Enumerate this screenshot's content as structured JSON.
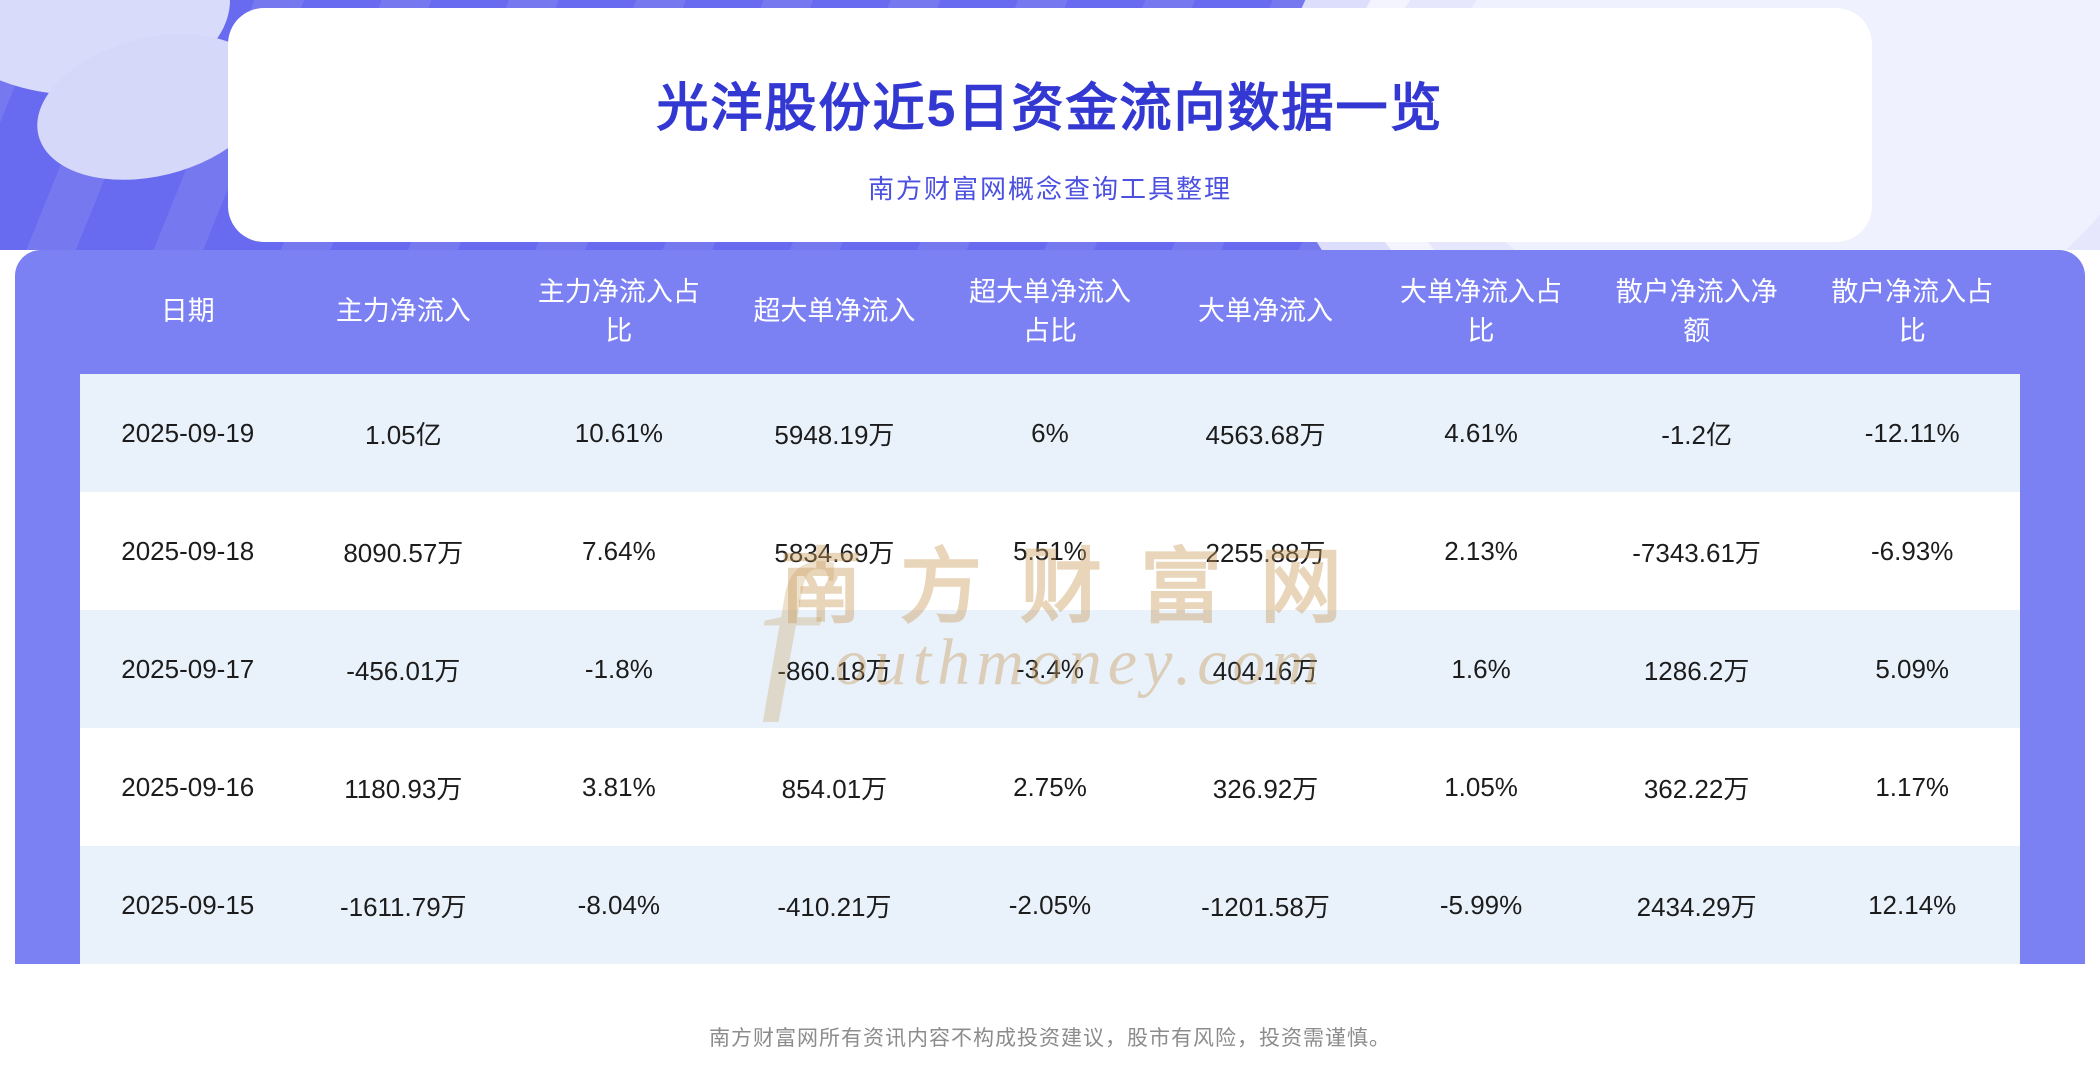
{
  "page": {
    "title": "光洋股份近5日资金流向数据一览",
    "subtitle": "南方财富网概念查询工具整理",
    "footer": "南方财富网所有资讯内容不构成投资建议，股市有风险，投资需谨慎。"
  },
  "watermark": {
    "cn": "南方财富网",
    "en": "outhmoney.com",
    "initial": "ƒ"
  },
  "colors": {
    "hero_background": "#686bef",
    "title_text": "#3438d2",
    "subtitle_text": "#4b50e0",
    "table_header_background": "#7b80f3",
    "table_header_text": "#ffffff",
    "row_alt_background": "#e9f2fb",
    "row_background": "#ffffff",
    "body_text": "#1c1c1c",
    "watermark": "#c89a5a",
    "footer_text": "#8c8c8c"
  },
  "chart_data": {
    "type": "table",
    "title": "光洋股份近5日资金流向数据一览",
    "columns": [
      "日期",
      "主力净流入",
      "主力净流入占比",
      "超大单净流入",
      "超大单净流入占比",
      "大单净流入",
      "大单净流入占比",
      "散户净流入净额",
      "散户净流入占比"
    ],
    "rows": [
      [
        "2025-09-19",
        "1.05亿",
        "10.61%",
        "5948.19万",
        "6%",
        "4563.68万",
        "4.61%",
        "-1.2亿",
        "-12.11%"
      ],
      [
        "2025-09-18",
        "8090.57万",
        "7.64%",
        "5834.69万",
        "5.51%",
        "2255.88万",
        "2.13%",
        "-7343.61万",
        "-6.93%"
      ],
      [
        "2025-09-17",
        "-456.01万",
        "-1.8%",
        "-860.18万",
        "-3.4%",
        "404.16万",
        "1.6%",
        "1286.2万",
        "5.09%"
      ],
      [
        "2025-09-16",
        "1180.93万",
        "3.81%",
        "854.01万",
        "2.75%",
        "326.92万",
        "1.05%",
        "362.22万",
        "1.17%"
      ],
      [
        "2025-09-15",
        "-1611.79万",
        "-8.04%",
        "-410.21万",
        "-2.05%",
        "-1201.58万",
        "-5.99%",
        "2434.29万",
        "12.14%"
      ]
    ]
  }
}
